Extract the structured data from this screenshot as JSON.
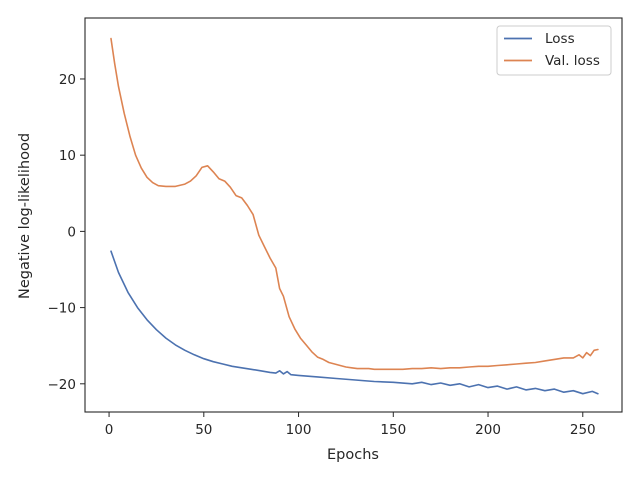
{
  "chart_data": {
    "type": "line",
    "title": "",
    "xlabel": "Epochs",
    "ylabel": "Negative log-likelihood",
    "xlim": [
      -12.7,
      270.7
    ],
    "ylim": [
      -23.7,
      28.0
    ],
    "xticks": [
      0,
      50,
      100,
      150,
      200,
      250
    ],
    "yticks": [
      -20,
      -10,
      0,
      10,
      20
    ],
    "xtick_labels": [
      "0",
      "50",
      "100",
      "150",
      "200",
      "250"
    ],
    "ytick_labels": [
      "−20",
      "−10",
      "0",
      "10",
      "20"
    ],
    "grid": false,
    "legend_position": "top-right",
    "series": [
      {
        "name": "Loss",
        "color": "#4c72b0",
        "x": [
          1,
          5,
          10,
          15,
          20,
          25,
          30,
          35,
          40,
          45,
          50,
          55,
          60,
          65,
          70,
          75,
          80,
          85,
          88,
          90,
          92,
          94,
          96,
          100,
          110,
          120,
          130,
          140,
          150,
          160,
          165,
          170,
          175,
          180,
          185,
          190,
          195,
          200,
          205,
          210,
          215,
          220,
          225,
          230,
          235,
          240,
          245,
          250,
          255,
          258
        ],
        "y": [
          -2.6,
          -5.4,
          -8.0,
          -10.0,
          -11.6,
          -12.9,
          -14.0,
          -14.9,
          -15.6,
          -16.2,
          -16.7,
          -17.1,
          -17.4,
          -17.7,
          -17.9,
          -18.1,
          -18.3,
          -18.5,
          -18.6,
          -18.3,
          -18.7,
          -18.4,
          -18.8,
          -18.9,
          -19.1,
          -19.3,
          -19.5,
          -19.7,
          -19.8,
          -20.0,
          -19.8,
          -20.1,
          -19.9,
          -20.2,
          -20.0,
          -20.4,
          -20.1,
          -20.5,
          -20.3,
          -20.7,
          -20.4,
          -20.8,
          -20.6,
          -20.9,
          -20.7,
          -21.1,
          -20.9,
          -21.3,
          -21.0,
          -21.3
        ]
      },
      {
        "name": "Val. loss",
        "color": "#dd8452",
        "x": [
          1,
          3,
          5,
          8,
          11,
          14,
          17,
          20,
          23,
          26,
          30,
          35,
          40,
          43,
          46,
          49,
          52,
          55,
          58,
          61,
          64,
          67,
          70,
          73,
          76,
          79,
          82,
          85,
          88,
          90,
          92,
          95,
          98,
          101,
          104,
          107,
          110,
          113,
          116,
          119,
          122,
          125,
          128,
          131,
          134,
          137,
          140,
          145,
          150,
          155,
          160,
          165,
          170,
          175,
          180,
          185,
          190,
          195,
          200,
          205,
          210,
          215,
          220,
          225,
          230,
          235,
          240,
          245,
          248,
          250,
          252,
          254,
          256,
          258
        ],
        "y": [
          25.3,
          22.0,
          19.0,
          15.5,
          12.5,
          10.0,
          8.3,
          7.1,
          6.4,
          6.0,
          5.9,
          5.9,
          6.2,
          6.6,
          7.3,
          8.4,
          8.6,
          7.8,
          6.9,
          6.6,
          5.8,
          4.7,
          4.4,
          3.4,
          2.2,
          -0.5,
          -2.0,
          -3.5,
          -4.8,
          -7.5,
          -8.5,
          -11.2,
          -12.8,
          -14.0,
          -14.9,
          -15.8,
          -16.5,
          -16.8,
          -17.2,
          -17.4,
          -17.6,
          -17.8,
          -17.9,
          -18.0,
          -18.0,
          -18.0,
          -18.1,
          -18.1,
          -18.1,
          -18.1,
          -18.0,
          -18.0,
          -17.9,
          -18.0,
          -17.9,
          -17.9,
          -17.8,
          -17.7,
          -17.7,
          -17.6,
          -17.5,
          -17.4,
          -17.3,
          -17.2,
          -17.0,
          -16.8,
          -16.6,
          -16.6,
          -16.2,
          -16.6,
          -15.9,
          -16.3,
          -15.6,
          -15.5
        ]
      }
    ]
  }
}
